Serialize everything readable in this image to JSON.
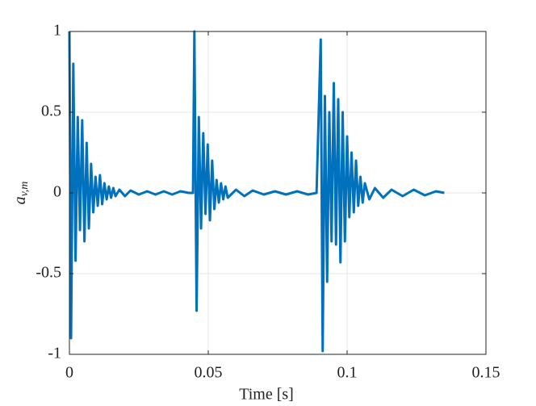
{
  "chart_data": {
    "type": "line",
    "xlabel": "Time [s]",
    "ylabel": [
      "a",
      "v,m"
    ],
    "x": [
      0,
      0.0006,
      0.0014,
      0.0022,
      0.003,
      0.0038,
      0.0046,
      0.0054,
      0.0062,
      0.007,
      0.0078,
      0.0086,
      0.0094,
      0.0102,
      0.011,
      0.0118,
      0.0126,
      0.0134,
      0.0142,
      0.015,
      0.0158,
      0.0166,
      0.018,
      0.02,
      0.022,
      0.025,
      0.028,
      0.031,
      0.034,
      0.037,
      0.04,
      0.043,
      0.0445,
      0.045,
      0.0458,
      0.0466,
      0.0474,
      0.0482,
      0.049,
      0.0498,
      0.0506,
      0.0514,
      0.0522,
      0.053,
      0.0538,
      0.0546,
      0.0554,
      0.0562,
      0.057,
      0.06,
      0.063,
      0.066,
      0.07,
      0.074,
      0.078,
      0.082,
      0.086,
      0.089,
      0.0905,
      0.0912,
      0.092,
      0.0928,
      0.0936,
      0.0944,
      0.0952,
      0.096,
      0.0968,
      0.0976,
      0.0984,
      0.0992,
      0.1,
      0.1008,
      0.1016,
      0.1024,
      0.1032,
      0.104,
      0.1048,
      0.1056,
      0.1064,
      0.108,
      0.11,
      0.113,
      0.116,
      0.12,
      0.124,
      0.128,
      0.132,
      0.135
    ],
    "series": [
      {
        "color": "#0072bd",
        "values": [
          1.0,
          -0.9,
          0.8,
          -0.42,
          0.47,
          -0.23,
          0.45,
          -0.3,
          0.31,
          -0.22,
          0.18,
          -0.12,
          0.1,
          -0.08,
          0.11,
          -0.07,
          0.06,
          -0.04,
          0.04,
          -0.03,
          0.03,
          -0.02,
          0.02,
          -0.02,
          0.015,
          -0.01,
          0.01,
          -0.01,
          0.01,
          -0.01,
          0.01,
          0,
          0,
          1.0,
          -0.73,
          0.47,
          -0.22,
          0.37,
          -0.13,
          0.3,
          -0.17,
          0.2,
          -0.1,
          0.08,
          -0.06,
          0.06,
          -0.04,
          0.04,
          -0.03,
          0.02,
          -0.02,
          0.015,
          -0.01,
          0.01,
          -0.01,
          0.01,
          -0.01,
          0,
          0.95,
          -0.98,
          0.6,
          -0.55,
          0.5,
          -0.3,
          0.68,
          -0.32,
          0.58,
          -0.43,
          0.5,
          -0.3,
          0.35,
          -0.15,
          0.25,
          -0.12,
          0.2,
          -0.08,
          0.1,
          -0.06,
          0.06,
          -0.04,
          0.03,
          -0.03,
          0.02,
          -0.02,
          0.02,
          -0.015,
          0.01,
          0
        ]
      }
    ],
    "xlim": [
      0,
      0.15
    ],
    "xticks": [
      0,
      0.05,
      0.1,
      0.15
    ],
    "ylim": [
      -1,
      1
    ],
    "yticks": [
      -1,
      -0.5,
      0,
      0.5,
      1
    ],
    "grid": true
  }
}
